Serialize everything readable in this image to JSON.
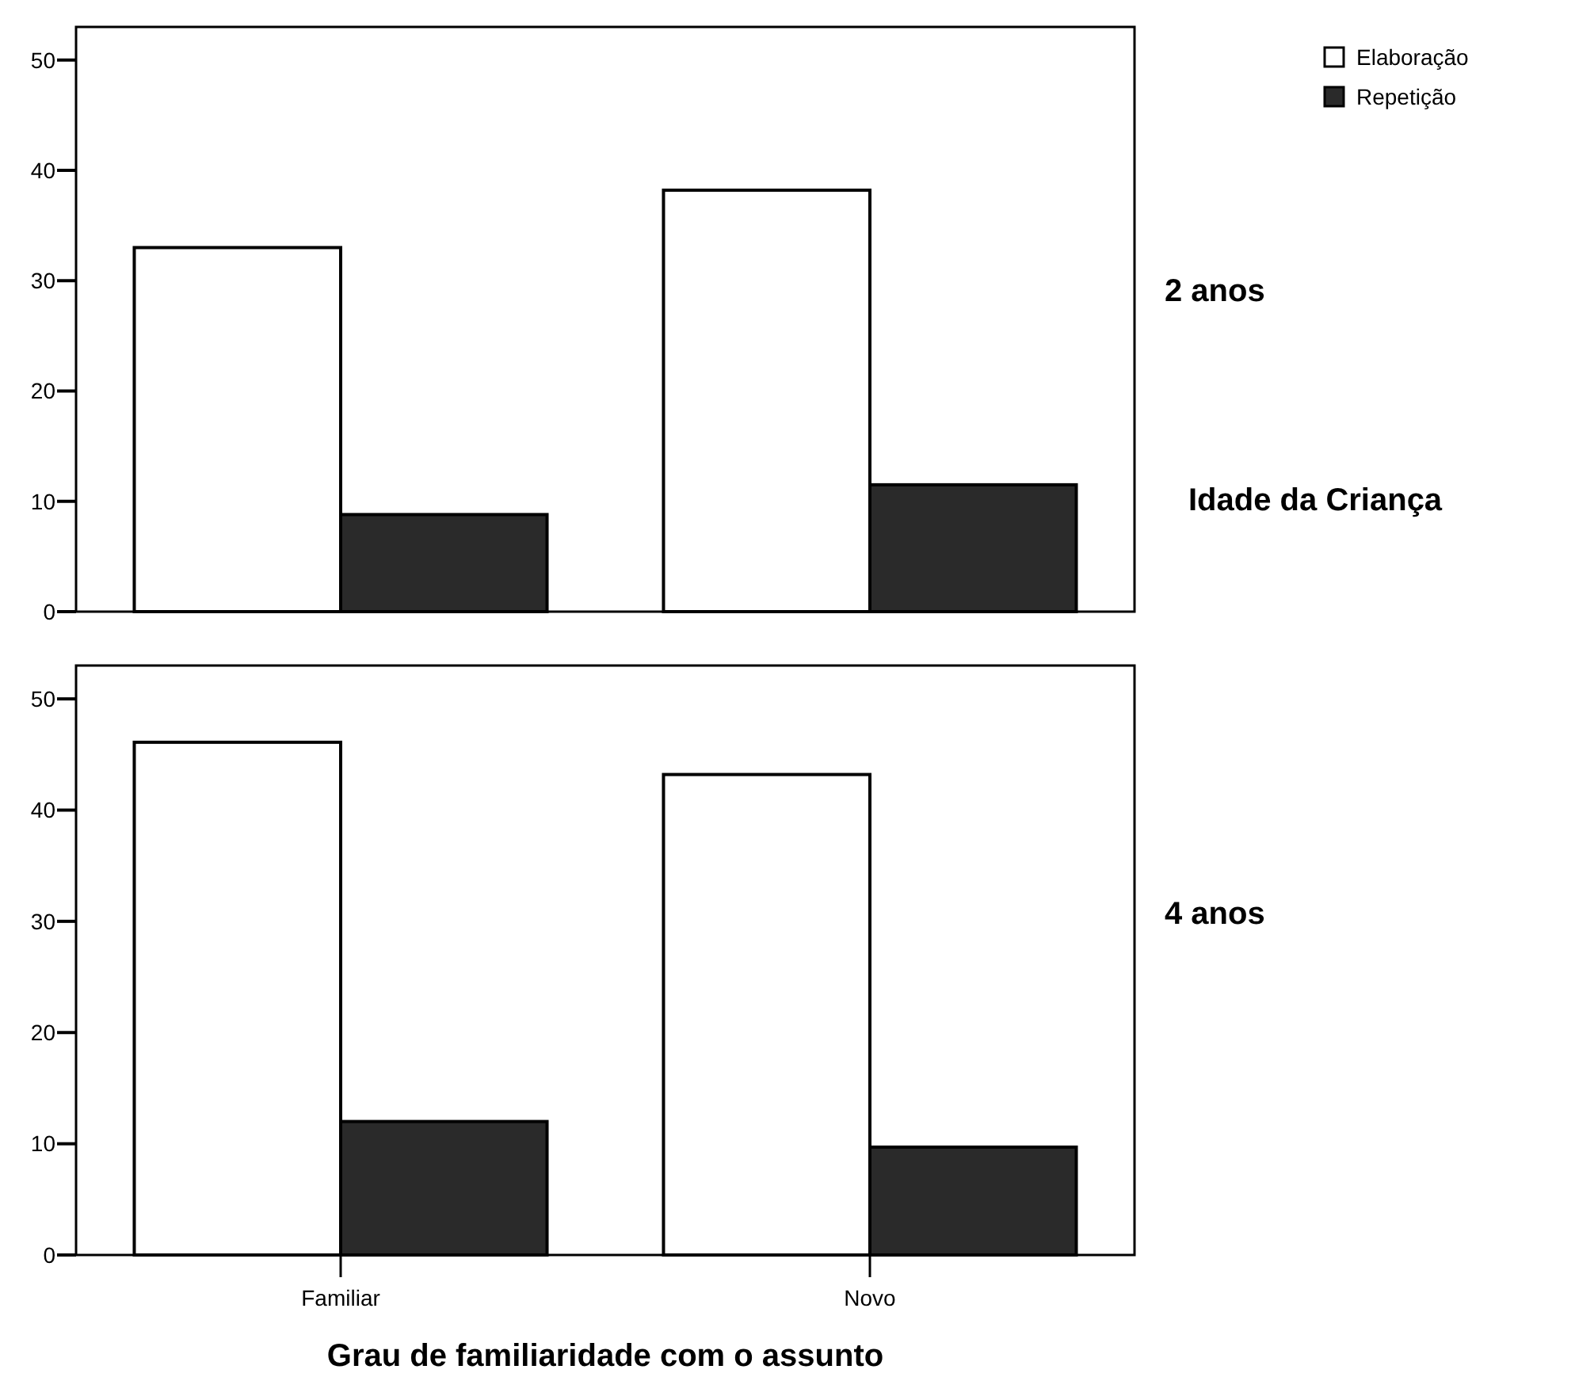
{
  "chart_data": [
    {
      "type": "bar",
      "annotations": [
        "2 anos",
        "Idade da Criança"
      ],
      "categories": [
        null,
        null
      ],
      "series": [
        {
          "name": "Elaboração",
          "color": "#ffffff",
          "values": [
            33.0,
            38.2
          ]
        },
        {
          "name": "Repetição",
          "color": "#2a2a2a",
          "values": [
            8.8,
            11.5
          ]
        }
      ],
      "ylim": [
        0,
        53
      ],
      "yticks": [
        0,
        10,
        20,
        30,
        40,
        50
      ],
      "tick_labels": "y",
      "legend": "top right"
    },
    {
      "type": "bar",
      "annotations": [
        "4 anos"
      ],
      "xlabel": "Grau de familiaridade com o assunto",
      "categories": [
        "Familiar",
        "Novo"
      ],
      "series": [
        {
          "color": "#ffffff",
          "values": [
            46.1,
            43.2
          ]
        },
        {
          "color": "#2a2a2a",
          "values": [
            12.0,
            9.7
          ]
        }
      ],
      "ylim": [
        0,
        53
      ],
      "yticks": [
        0,
        10,
        20,
        30,
        40,
        50
      ]
    }
  ]
}
